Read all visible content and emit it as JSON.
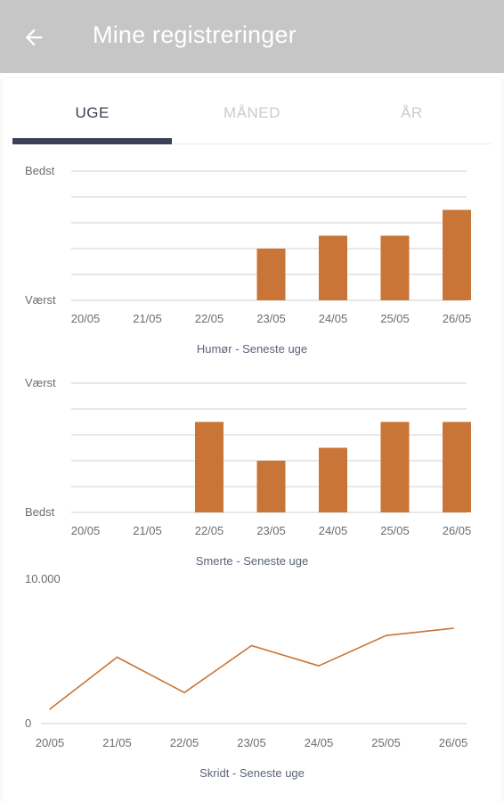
{
  "header": {
    "title": "Mine registreringer",
    "back_icon": "arrow-left-icon",
    "background": "#c6c6c6"
  },
  "tabs": [
    {
      "label": "UGE",
      "active": true
    },
    {
      "label": "MÅNED",
      "active": false
    },
    {
      "label": "ÅR",
      "active": false
    }
  ],
  "colors": {
    "accent": "#c87537",
    "tab_indicator": "#3a4256",
    "grid": "#d9d9d9"
  },
  "chart_data": [
    {
      "type": "bar",
      "caption": "Humør - Seneste uge",
      "categories": [
        "20/05",
        "21/05",
        "22/05",
        "23/05",
        "24/05",
        "25/05",
        "26/05"
      ],
      "values": [
        0,
        0,
        0,
        2,
        2.5,
        2.5,
        3.5
      ],
      "ylim": [
        0,
        5
      ],
      "y_top_label": "Bedst",
      "y_bottom_label": "Værst",
      "grid": true
    },
    {
      "type": "bar",
      "caption": "Smerte - Seneste uge",
      "categories": [
        "20/05",
        "21/05",
        "22/05",
        "23/05",
        "24/05",
        "25/05",
        "26/05"
      ],
      "values": [
        0,
        0,
        3.5,
        2,
        2.5,
        3.5,
        3.5
      ],
      "ylim": [
        0,
        5
      ],
      "y_top_label": "Værst",
      "y_bottom_label": "Bedst",
      "grid": true
    },
    {
      "type": "line",
      "caption": "Skridt - Seneste uge",
      "categories": [
        "20/05",
        "21/05",
        "22/05",
        "23/05",
        "24/05",
        "25/05",
        "26/05"
      ],
      "values": [
        1000,
        4600,
        2150,
        5400,
        4000,
        6100,
        6600
      ],
      "ylim": [
        0,
        10000
      ],
      "y_top_label": "10.000",
      "y_bottom_label": "0",
      "grid": false
    }
  ]
}
